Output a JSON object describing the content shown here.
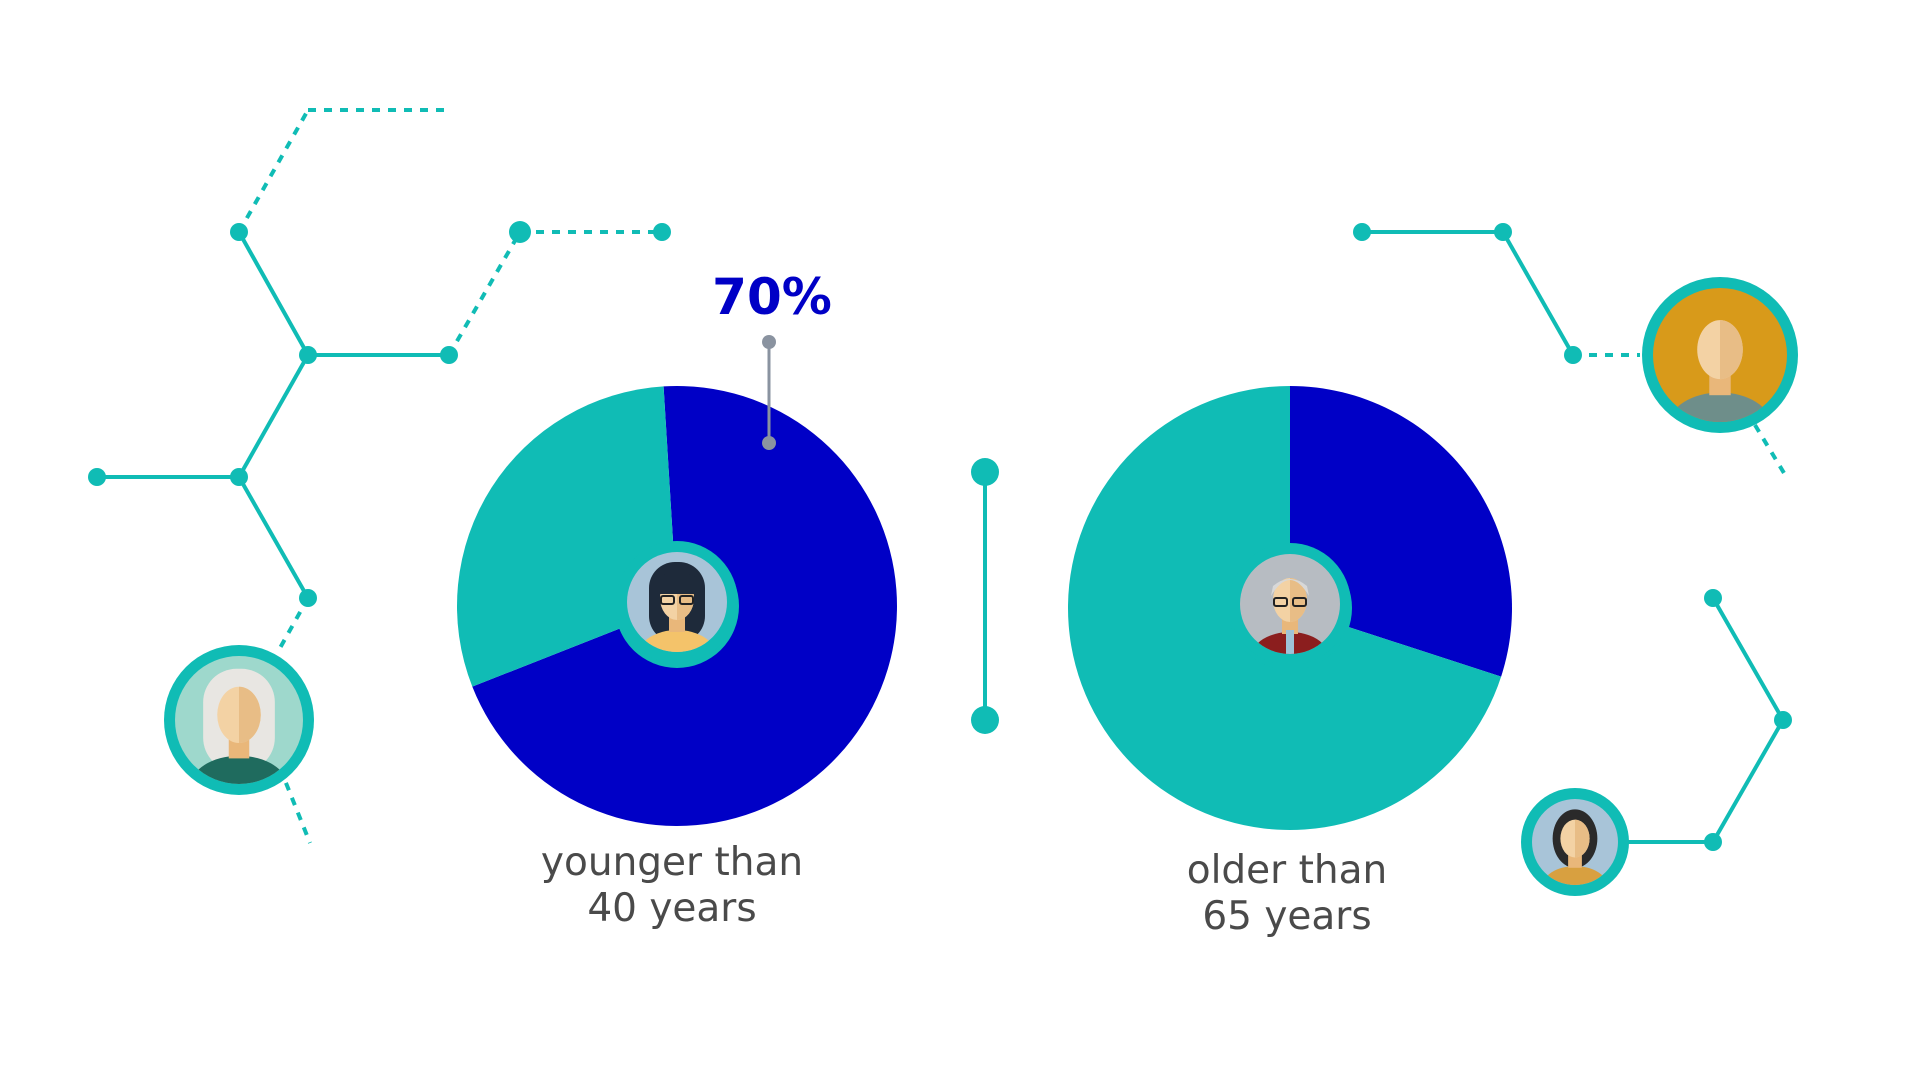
{
  "colors": {
    "teal": "#10bcb5",
    "blue": "#0000c6",
    "gray_marker": "#8a93a0",
    "label_text": "#4a4a4a"
  },
  "chart_data": [
    {
      "type": "pie",
      "label_lines": [
        "younger than",
        "40 years"
      ],
      "slices": [
        {
          "category": "younger than 40 years",
          "value": 70,
          "color": "blue"
        },
        {
          "category": "rest",
          "value": 30,
          "color": "teal"
        }
      ],
      "annotation": "70%",
      "center_icon": "young-woman-with-glasses-avatar"
    },
    {
      "type": "pie",
      "label_lines": [
        "older than",
        "65 years"
      ],
      "slices": [
        {
          "category": "older than 65 years",
          "value": 30,
          "color": "blue"
        },
        {
          "category": "rest",
          "value": 70,
          "color": "teal"
        }
      ],
      "center_icon": "elderly-man-with-glasses-avatar"
    }
  ],
  "decorations": {
    "avatars": [
      "elderly-woman-avatar",
      "bald-man-avatar",
      "woman-dark-hair-avatar"
    ],
    "network_lines": "teal connector lines with dots"
  }
}
